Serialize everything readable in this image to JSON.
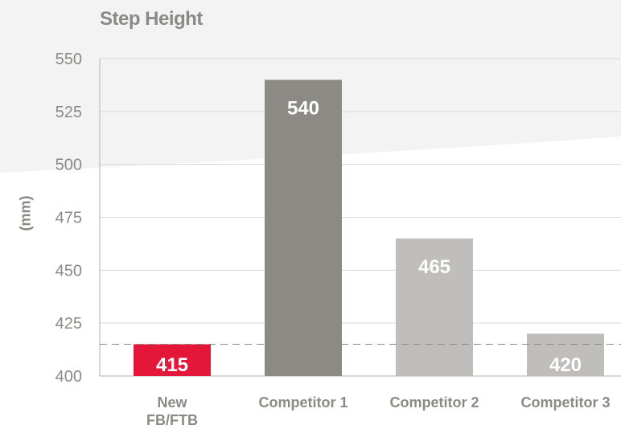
{
  "chart_data": {
    "type": "bar",
    "title": "Step Height",
    "ylabel": "(mm)",
    "xlabel": "",
    "ylim": [
      400,
      550
    ],
    "yticks": [
      "550",
      "525",
      "500",
      "475",
      "450",
      "425",
      "400"
    ],
    "categories": [
      "New\nFB/FTB",
      "Competitor 1",
      "Competitor 2",
      "Competitor 3"
    ],
    "values": [
      415,
      540,
      465,
      420
    ],
    "value_labels": [
      "415",
      "540",
      "465",
      "420"
    ],
    "bar_colors": [
      "#e4173a",
      "#8b8a84",
      "#bfbebb",
      "#bfbebb"
    ],
    "reference_line": 415,
    "grid": true,
    "legend": "none"
  },
  "colors": {
    "axis_text": "#8a8a86",
    "grid": "#d9d9d9",
    "dashed": "#8a8a86",
    "bar_label": "#ffffff"
  }
}
